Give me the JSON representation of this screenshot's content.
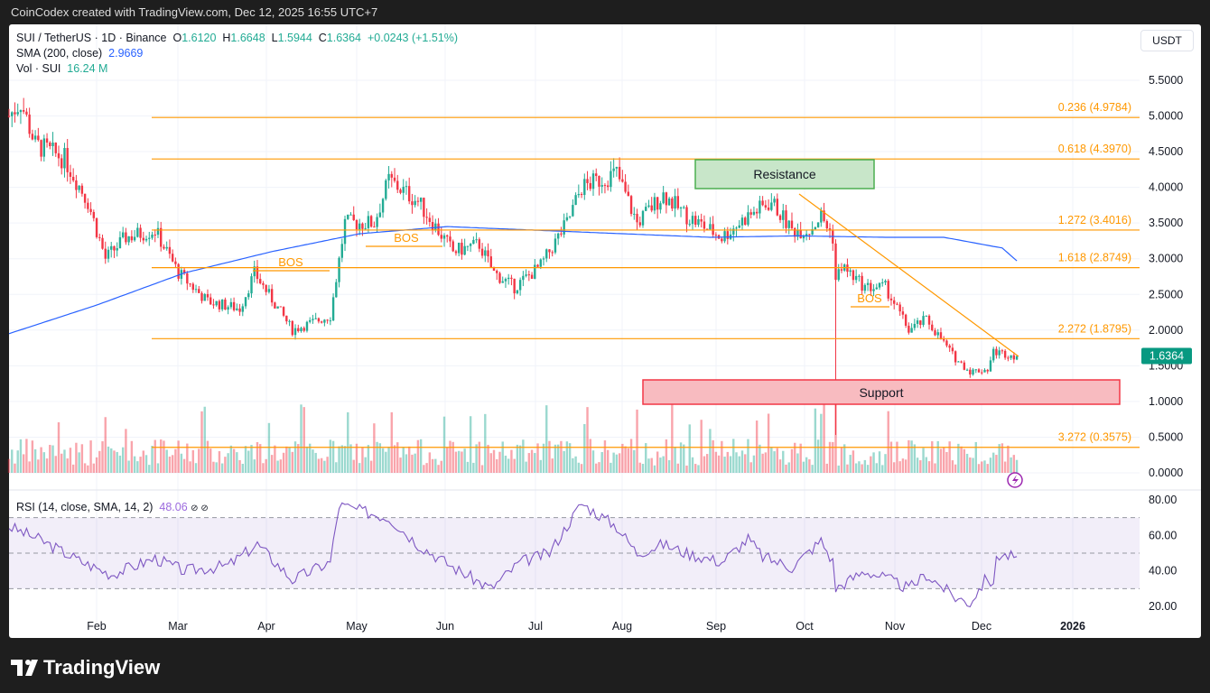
{
  "header": {
    "caption": "CoinCodex created with TradingView.com, Dec 12, 2025 16:55 UTC+7"
  },
  "legend": {
    "symbol": "SUI / TetherUS · 1D · Binance",
    "o_label": "O",
    "o": "1.6120",
    "h_label": "H",
    "h": "1.6648",
    "l_label": "L",
    "l": "1.5944",
    "c_label": "C",
    "c": "1.6364",
    "change": "+0.0243 (+1.51%)",
    "sma_label": "SMA (200, close)",
    "sma": "2.9669",
    "vol_label": "Vol · SUI",
    "vol": "16.24 M",
    "rsi_label": "RSI (14, close, SMA, 14, 2)",
    "rsi": "48.06",
    "rsi_icons": "⊘ ⊘"
  },
  "currency": "USDT",
  "footer": {
    "brand": "TradingView"
  },
  "colors": {
    "up": "#22ab94",
    "down": "#f23645",
    "fib": "#ff9800",
    "sma": "#2962ff",
    "rsi": "#7e57c2"
  },
  "chart_data": {
    "type": "candlestick",
    "price_axis": {
      "ticks": [
        "5.5000",
        "5.0000",
        "4.5000",
        "4.0000",
        "3.5000",
        "3.0000",
        "2.5000",
        "2.0000",
        "1.5000",
        "1.0000",
        "0.5000",
        "0.0000"
      ],
      "range": [
        0,
        5.5
      ]
    },
    "rsi_axis": {
      "ticks": [
        "80.00",
        "60.00",
        "40.00",
        "20.00"
      ],
      "bands": [
        30,
        50,
        70
      ]
    },
    "time_axis": {
      "labels": [
        "Feb",
        "Mar",
        "Apr",
        "May",
        "Jun",
        "Jul",
        "Aug",
        "Sep",
        "Oct",
        "Nov",
        "Dec",
        "2026"
      ]
    },
    "last_price": "1.6364",
    "close_keypoints": [
      [
        0,
        5.0
      ],
      [
        4,
        5.2
      ],
      [
        9,
        4.6
      ],
      [
        19,
        4.4
      ],
      [
        27,
        3.8
      ],
      [
        33,
        3.0
      ],
      [
        40,
        3.3
      ],
      [
        50,
        3.4
      ],
      [
        58,
        2.8
      ],
      [
        68,
        2.4
      ],
      [
        79,
        2.3
      ],
      [
        84,
        2.8
      ],
      [
        97,
        2.0
      ],
      [
        110,
        2.2
      ],
      [
        115,
        3.5
      ],
      [
        125,
        3.5
      ],
      [
        130,
        4.1
      ],
      [
        140,
        3.8
      ],
      [
        152,
        3.1
      ],
      [
        161,
        3.2
      ],
      [
        166,
        2.8
      ],
      [
        173,
        2.6
      ],
      [
        182,
        2.9
      ],
      [
        191,
        3.5
      ],
      [
        196,
        4.0
      ],
      [
        208,
        4.2
      ],
      [
        215,
        3.5
      ],
      [
        224,
        3.9
      ],
      [
        232,
        3.6
      ],
      [
        244,
        3.3
      ],
      [
        253,
        3.6
      ],
      [
        261,
        3.8
      ],
      [
        268,
        3.4
      ],
      [
        274,
        3.4
      ],
      [
        278,
        3.6
      ],
      [
        282,
        3.3
      ],
      [
        283,
        2.7
      ],
      [
        285,
        2.9
      ],
      [
        293,
        2.6
      ],
      [
        300,
        2.6
      ],
      [
        308,
        2.0
      ],
      [
        314,
        2.15
      ],
      [
        324,
        1.6
      ],
      [
        329,
        1.42
      ],
      [
        335,
        1.45
      ],
      [
        337,
        1.7
      ],
      [
        345,
        1.6364
      ]
    ],
    "sma_keypoints": [
      [
        0,
        1.95
      ],
      [
        30,
        2.35
      ],
      [
        60,
        2.8
      ],
      [
        90,
        3.1
      ],
      [
        120,
        3.35
      ],
      [
        150,
        3.45
      ],
      [
        180,
        3.4
      ],
      [
        210,
        3.35
      ],
      [
        240,
        3.3
      ],
      [
        270,
        3.32
      ],
      [
        300,
        3.3
      ],
      [
        320,
        3.3
      ],
      [
        340,
        3.15
      ],
      [
        345,
        2.97
      ]
    ],
    "rsi_keypoints": [
      [
        0,
        65
      ],
      [
        10,
        58
      ],
      [
        25,
        45
      ],
      [
        35,
        38
      ],
      [
        50,
        47
      ],
      [
        60,
        40
      ],
      [
        75,
        43
      ],
      [
        85,
        55
      ],
      [
        97,
        35
      ],
      [
        110,
        45
      ],
      [
        113,
        77
      ],
      [
        125,
        72
      ],
      [
        130,
        70
      ],
      [
        140,
        55
      ],
      [
        152,
        42
      ],
      [
        165,
        30
      ],
      [
        175,
        45
      ],
      [
        185,
        50
      ],
      [
        192,
        68
      ],
      [
        196,
        78
      ],
      [
        208,
        65
      ],
      [
        215,
        50
      ],
      [
        224,
        55
      ],
      [
        232,
        50
      ],
      [
        244,
        45
      ],
      [
        253,
        58
      ],
      [
        258,
        48
      ],
      [
        268,
        42
      ],
      [
        278,
        57
      ],
      [
        282,
        45
      ],
      [
        283,
        30
      ],
      [
        293,
        40
      ],
      [
        300,
        36
      ],
      [
        308,
        30
      ],
      [
        314,
        38
      ],
      [
        324,
        25
      ],
      [
        329,
        22
      ],
      [
        335,
        37
      ],
      [
        337,
        30
      ],
      [
        338,
        49
      ],
      [
        345,
        48.06
      ]
    ],
    "fib_levels": [
      {
        "label": "0.236 (4.9784)",
        "value": 4.9784
      },
      {
        "label": "0.618 (4.3970)",
        "value": 4.397
      },
      {
        "label": "1.272 (3.4016)",
        "value": 3.4016
      },
      {
        "label": "1.618 (2.8749)",
        "value": 2.8749
      },
      {
        "label": "2.272 (1.8795)",
        "value": 1.8795
      },
      {
        "label": "3.272 (0.3575)",
        "value": 0.3575
      }
    ],
    "annotations": {
      "resistance": "Resistance",
      "support": "Support",
      "bos": [
        "BOS",
        "BOS",
        "BOS"
      ]
    }
  }
}
